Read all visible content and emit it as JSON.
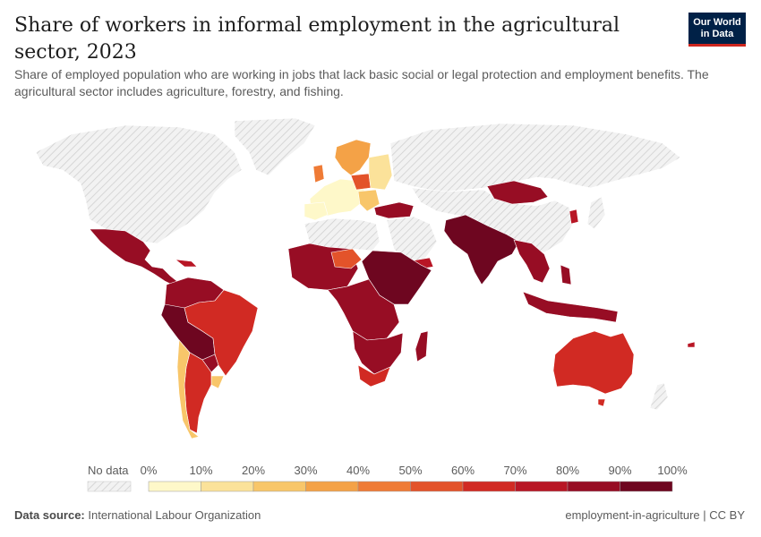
{
  "header": {
    "title": "Share of workers in informal employment in the agricultural sector, 2023",
    "subtitle": "Share of employed population who are working in jobs that lack basic social or legal protection and employment benefits. The agricultural sector includes agriculture, forestry, and fishing.",
    "logo_line1": "Our World",
    "logo_line2": "in Data"
  },
  "legend": {
    "no_data_label": "No data",
    "ticks": [
      "0%",
      "10%",
      "20%",
      "30%",
      "40%",
      "50%",
      "60%",
      "70%",
      "80%",
      "90%",
      "100%"
    ],
    "colors": [
      "#fef8c9",
      "#fbe29a",
      "#f8c66a",
      "#f4a247",
      "#ef7b36",
      "#e3532a",
      "#d12a23",
      "#b81625",
      "#970d24",
      "#6e0620"
    ]
  },
  "colors": {
    "no_data": "#e8e8e8",
    "border": "#ffffff"
  },
  "footer": {
    "source_label": "Data source:",
    "source_value": "International Labour Organization",
    "right_text": "employment-in-agriculture | CC BY"
  }
}
